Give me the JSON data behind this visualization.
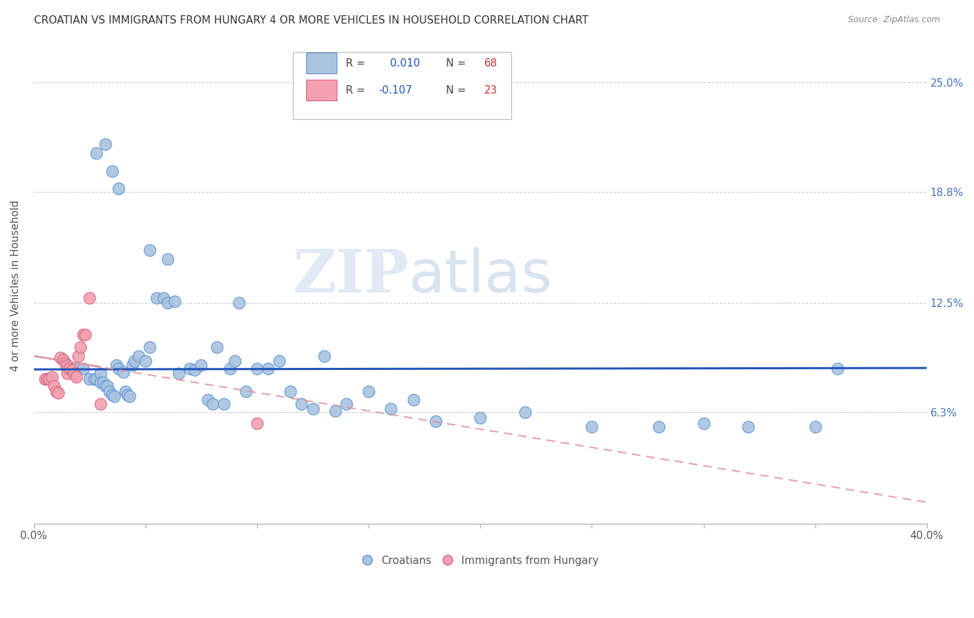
{
  "title": "CROATIAN VS IMMIGRANTS FROM HUNGARY 4 OR MORE VEHICLES IN HOUSEHOLD CORRELATION CHART",
  "source": "Source: ZipAtlas.com",
  "ylabel": "4 or more Vehicles in Household",
  "ytick_labels": [
    "25.0%",
    "18.8%",
    "12.5%",
    "6.3%"
  ],
  "ytick_values": [
    0.25,
    0.188,
    0.125,
    0.063
  ],
  "xlim": [
    0.0,
    0.4
  ],
  "ylim": [
    0.0,
    0.27
  ],
  "color_croatian": "#aac4e0",
  "color_hungary": "#f4a0b0",
  "color_edge_croatian": "#5590d0",
  "color_edge_hungary": "#d06080",
  "color_line_croatian": "#2255bb",
  "color_line_hungary": "#e090a0",
  "watermark_zip": "ZIP",
  "watermark_atlas": "atlas",
  "croatian_x": [
    0.015,
    0.02,
    0.022,
    0.025,
    0.027,
    0.028,
    0.03,
    0.03,
    0.031,
    0.032,
    0.033,
    0.034,
    0.035,
    0.036,
    0.037,
    0.038,
    0.04,
    0.041,
    0.042,
    0.043,
    0.044,
    0.045,
    0.047,
    0.05,
    0.052,
    0.055,
    0.058,
    0.06,
    0.063,
    0.065,
    0.07,
    0.072,
    0.075,
    0.078,
    0.08,
    0.082,
    0.085,
    0.088,
    0.09,
    0.095,
    0.1,
    0.105,
    0.11,
    0.115,
    0.12,
    0.125,
    0.13,
    0.135,
    0.14,
    0.15,
    0.16,
    0.17,
    0.18,
    0.2,
    0.22,
    0.25,
    0.28,
    0.3,
    0.32,
    0.35,
    0.028,
    0.032,
    0.035,
    0.038,
    0.052,
    0.06,
    0.092,
    0.36
  ],
  "croatian_y": [
    0.088,
    0.088,
    0.088,
    0.082,
    0.082,
    0.082,
    0.085,
    0.08,
    0.08,
    0.078,
    0.078,
    0.075,
    0.073,
    0.072,
    0.09,
    0.088,
    0.086,
    0.075,
    0.073,
    0.072,
    0.09,
    0.092,
    0.095,
    0.092,
    0.1,
    0.128,
    0.128,
    0.125,
    0.126,
    0.085,
    0.088,
    0.087,
    0.09,
    0.07,
    0.068,
    0.1,
    0.068,
    0.088,
    0.092,
    0.075,
    0.088,
    0.088,
    0.092,
    0.075,
    0.068,
    0.065,
    0.095,
    0.064,
    0.068,
    0.075,
    0.065,
    0.07,
    0.058,
    0.06,
    0.063,
    0.055,
    0.055,
    0.057,
    0.055,
    0.055,
    0.21,
    0.215,
    0.2,
    0.19,
    0.155,
    0.15,
    0.125,
    0.088
  ],
  "hungary_x": [
    0.005,
    0.006,
    0.007,
    0.008,
    0.009,
    0.01,
    0.011,
    0.012,
    0.013,
    0.014,
    0.015,
    0.015,
    0.016,
    0.017,
    0.018,
    0.019,
    0.02,
    0.021,
    0.022,
    0.023,
    0.025,
    0.03,
    0.1
  ],
  "hungary_y": [
    0.082,
    0.082,
    0.082,
    0.083,
    0.078,
    0.075,
    0.074,
    0.094,
    0.093,
    0.091,
    0.09,
    0.085,
    0.088,
    0.087,
    0.085,
    0.083,
    0.095,
    0.1,
    0.107,
    0.107,
    0.128,
    0.068,
    0.057
  ],
  "cro_line_x": [
    0.0,
    0.4
  ],
  "cro_line_y": [
    0.0874,
    0.0882
  ],
  "hun_line_x": [
    0.0,
    0.4
  ],
  "hun_line_y": [
    0.095,
    0.012
  ]
}
